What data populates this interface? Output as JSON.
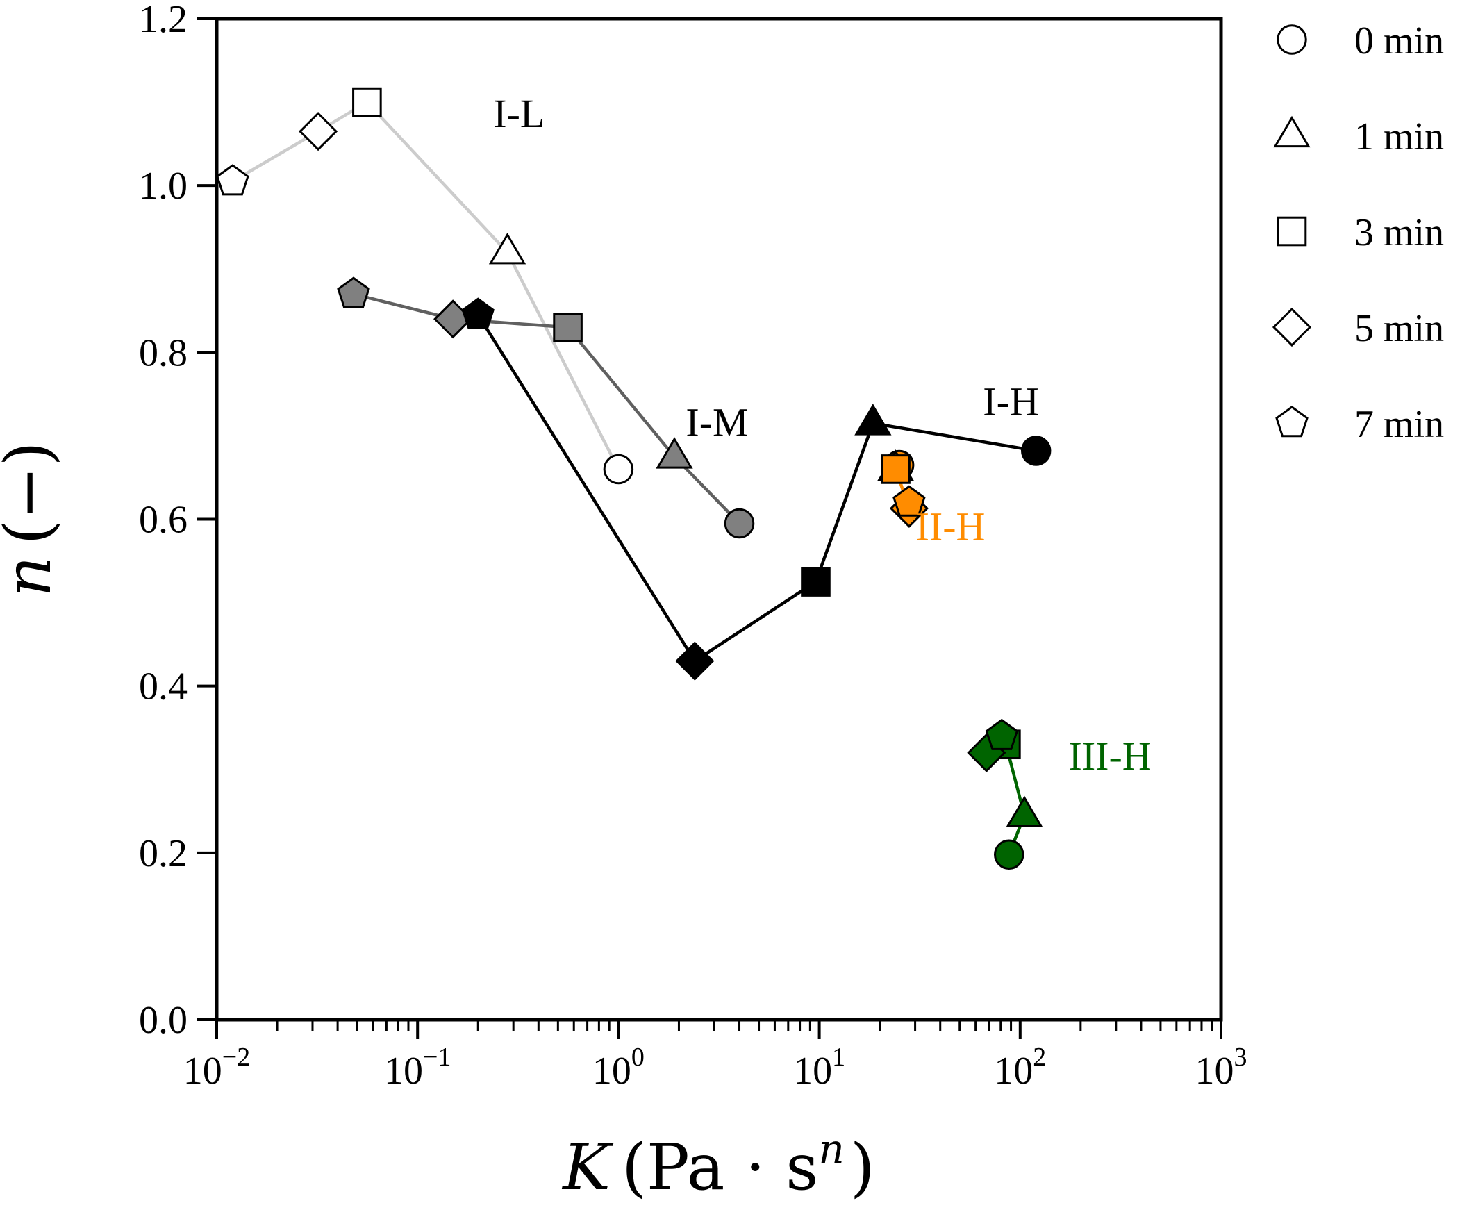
{
  "chart_data": {
    "type": "scatter",
    "x_scale": "log",
    "xlim": [
      0.01,
      1000
    ],
    "ylim": [
      0.0,
      1.2
    ],
    "grid": false,
    "xlabel": {
      "main": "K",
      "unit_open": "(Pa · s",
      "unit_sup": "n",
      "unit_close": ")"
    },
    "ylabel": {
      "main": "n",
      "unit": "(−)"
    },
    "x_ticks": [
      {
        "base": "10",
        "exp": "−2",
        "value": 0.01
      },
      {
        "base": "10",
        "exp": "−1",
        "value": 0.1
      },
      {
        "base": "10",
        "exp": "0",
        "value": 1
      },
      {
        "base": "10",
        "exp": "1",
        "value": 10
      },
      {
        "base": "10",
        "exp": "2",
        "value": 100
      },
      {
        "base": "10",
        "exp": "3",
        "value": 1000
      }
    ],
    "y_ticks": [
      {
        "label": "0.0",
        "value": 0.0
      },
      {
        "label": "0.2",
        "value": 0.2
      },
      {
        "label": "0.4",
        "value": 0.4
      },
      {
        "label": "0.6",
        "value": 0.6
      },
      {
        "label": "0.8",
        "value": 0.8
      },
      {
        "label": "1.0",
        "value": 1.0
      },
      {
        "label": "1.2",
        "value": 1.2
      }
    ],
    "legend": {
      "placement": "outside-right",
      "entries": [
        {
          "marker": "circle",
          "label": "0 min"
        },
        {
          "marker": "triangle",
          "label": "1 min"
        },
        {
          "marker": "square",
          "label": "3 min"
        },
        {
          "marker": "diamond",
          "label": "5 min"
        },
        {
          "marker": "pentagon",
          "label": "7 min"
        }
      ]
    },
    "series": [
      {
        "name": "I-L",
        "label_color": "#000000",
        "line_color": "#cccccc",
        "fill": "#ffffff",
        "label_at": {
          "x": 0.32,
          "y": 1.07
        },
        "points": [
          {
            "marker": "circle",
            "x": 1.0,
            "y": 0.66
          },
          {
            "marker": "triangle",
            "x": 0.28,
            "y": 0.92
          },
          {
            "marker": "square",
            "x": 0.056,
            "y": 1.1
          },
          {
            "marker": "diamond",
            "x": 0.032,
            "y": 1.065
          },
          {
            "marker": "pentagon",
            "x": 0.012,
            "y": 1.005
          }
        ]
      },
      {
        "name": "I-M",
        "label_color": "#000000",
        "line_color": "#606060",
        "fill": "#808080",
        "label_at": {
          "x": 3.1,
          "y": 0.7
        },
        "points": [
          {
            "marker": "circle",
            "x": 4.0,
            "y": 0.595
          },
          {
            "marker": "triangle",
            "x": 1.9,
            "y": 0.675
          },
          {
            "marker": "square",
            "x": 0.56,
            "y": 0.83
          },
          {
            "marker": "diamond",
            "x": 0.15,
            "y": 0.84
          },
          {
            "marker": "pentagon",
            "x": 0.048,
            "y": 0.87
          }
        ]
      },
      {
        "name": "I-H",
        "label_color": "#000000",
        "line_color": "#000000",
        "fill": "#000000",
        "label_at": {
          "x": 90,
          "y": 0.725
        },
        "points": [
          {
            "marker": "circle",
            "x": 120,
            "y": 0.682
          },
          {
            "marker": "triangle",
            "x": 18.5,
            "y": 0.715
          },
          {
            "marker": "square",
            "x": 9.6,
            "y": 0.525
          },
          {
            "marker": "diamond",
            "x": 2.4,
            "y": 0.43
          },
          {
            "marker": "pentagon",
            "x": 0.2,
            "y": 0.845
          }
        ]
      },
      {
        "name": "II-H",
        "label_color": "#ff8c00",
        "line_color": "#ff8c00",
        "fill": "#ff8c00",
        "label_at": {
          "x": 45,
          "y": 0.575
        },
        "points": [
          {
            "marker": "circle",
            "x": 25,
            "y": 0.665
          },
          {
            "marker": "triangle",
            "x": 24,
            "y": 0.66
          },
          {
            "marker": "square",
            "x": 24,
            "y": 0.66
          },
          {
            "marker": "diamond",
            "x": 28,
            "y": 0.613
          },
          {
            "marker": "pentagon",
            "x": 28,
            "y": 0.62
          }
        ]
      },
      {
        "name": "III-H",
        "label_color": "#006400",
        "line_color": "#006400",
        "fill": "#006400",
        "label_at": {
          "x": 280,
          "y": 0.3
        },
        "points": [
          {
            "marker": "circle",
            "x": 88,
            "y": 0.198
          },
          {
            "marker": "triangle",
            "x": 105,
            "y": 0.245
          },
          {
            "marker": "square",
            "x": 85,
            "y": 0.33
          },
          {
            "marker": "diamond",
            "x": 68,
            "y": 0.32
          },
          {
            "marker": "pentagon",
            "x": 81,
            "y": 0.34
          }
        ]
      }
    ]
  }
}
